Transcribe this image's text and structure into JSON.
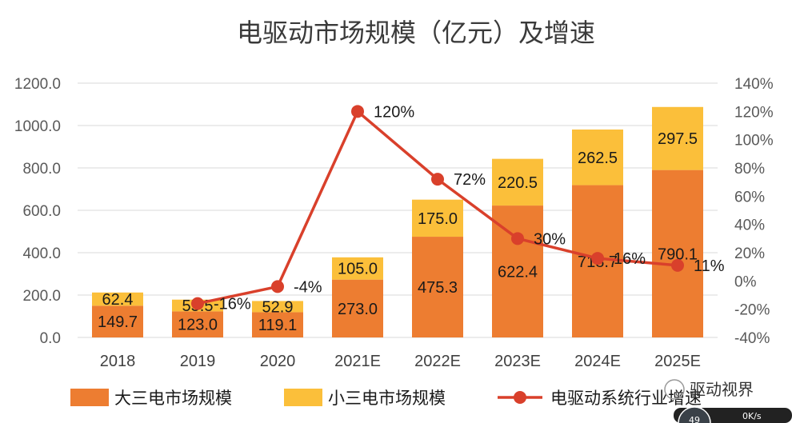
{
  "chart_data": {
    "type": "bar",
    "stacked": true,
    "title": "电驱动市场规模（亿元）及增速",
    "categories": [
      "2018",
      "2019",
      "2020",
      "2021E",
      "2022E",
      "2023E",
      "2024E",
      "2025E"
    ],
    "series": [
      {
        "name": "大三电市场规模",
        "type": "bar",
        "axis": "left",
        "color": "#ED7D31",
        "values": [
          149.7,
          123.0,
          119.1,
          273.0,
          475.3,
          622.4,
          718.7,
          790.1
        ],
        "labels": [
          "149.7",
          "123.0",
          "119.1",
          "273.0",
          "475.3",
          "622.4",
          "718.7",
          "790.1"
        ]
      },
      {
        "name": "小三电市场规模",
        "type": "bar",
        "axis": "left",
        "color": "#FBBF3A",
        "values": [
          62.4,
          55.5,
          52.9,
          105.0,
          175.0,
          220.5,
          262.5,
          297.5
        ],
        "labels": [
          "62.4",
          "55.5",
          "52.9",
          "105.0",
          "175.0",
          "220.5",
          "262.5",
          "297.5"
        ]
      },
      {
        "name": "电驱动系统行业增速",
        "type": "line",
        "axis": "right",
        "color": "#D9402B",
        "values": [
          null,
          -16,
          -4,
          120,
          72,
          30,
          16,
          11
        ],
        "labels": [
          "",
          "-16%",
          "-4%",
          "120%",
          "72%",
          "30%",
          "16%",
          "11%"
        ]
      }
    ],
    "y_left": {
      "ylim": [
        0,
        1200
      ],
      "ticks": [
        "0.0",
        "200.0",
        "400.0",
        "600.0",
        "800.0",
        "1000.0",
        "1200.0"
      ]
    },
    "y_right": {
      "ylim": [
        -40,
        140
      ],
      "ticks": [
        "-40%",
        "-20%",
        "0%",
        "20%",
        "40%",
        "60%",
        "80%",
        "100%",
        "120%",
        "140%"
      ]
    },
    "grid": true,
    "legend": "bottom"
  },
  "watermark": {
    "text": "驱动视界",
    "badge_text": "49",
    "speed_text": "0K/s"
  }
}
